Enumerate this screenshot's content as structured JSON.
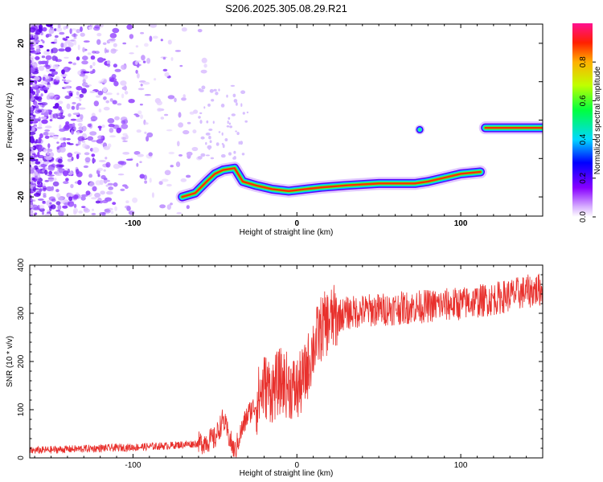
{
  "title": "S206.2025.305.08.29.R21",
  "colors": {
    "trace": "#e8302c",
    "frame": "#000000",
    "background": "#ffffff"
  },
  "chart_data": [
    {
      "type": "heatmap",
      "name": "spectrogram",
      "title": "S206.2025.305.08.29.R21",
      "xlabel": "Height of straight line (km)",
      "ylabel": "Frequency (Hz)",
      "xlim": [
        -163,
        150
      ],
      "ylim": [
        -25,
        25
      ],
      "x_ticks": [
        -100,
        0,
        100
      ],
      "x_tick_labels": [
        "-100",
        "0",
        "100"
      ],
      "y_ticks": [
        -20,
        -10,
        0,
        10,
        20
      ],
      "y_tick_labels": [
        "-20",
        "-10",
        "0",
        "10",
        "20"
      ],
      "colorbar": {
        "label": "Normalized spectral amplitude",
        "range": [
          0,
          1
        ],
        "ticks": [
          0.0,
          0.2,
          0.4,
          0.6,
          0.8
        ],
        "tick_labels": [
          "0.0",
          "0.2",
          "0.4",
          "0.6",
          "0.8"
        ]
      },
      "ridge": [
        {
          "x": -70,
          "f": -20
        },
        {
          "x": -62,
          "f": -19
        },
        {
          "x": -55,
          "f": -16
        },
        {
          "x": -50,
          "f": -14
        },
        {
          "x": -45,
          "f": -13
        },
        {
          "x": -38,
          "f": -12.5
        },
        {
          "x": -33,
          "f": -16
        },
        {
          "x": -25,
          "f": -17
        },
        {
          "x": -15,
          "f": -18
        },
        {
          "x": -5,
          "f": -18.5
        },
        {
          "x": 5,
          "f": -18
        },
        {
          "x": 15,
          "f": -17.5
        },
        {
          "x": 30,
          "f": -17
        },
        {
          "x": 50,
          "f": -16.5
        },
        {
          "x": 72,
          "f": -16.5
        },
        {
          "x": 80,
          "f": -16
        },
        {
          "x": 90,
          "f": -15
        },
        {
          "x": 100,
          "f": -14
        },
        {
          "x": 112,
          "f": -13.5
        },
        {
          "x": 115,
          "f": -2
        },
        {
          "x": 150,
          "f": -2
        }
      ],
      "spot": {
        "x": 75,
        "f": -2.5
      }
    },
    {
      "type": "line",
      "name": "snr",
      "xlabel": "Height of straight line (km)",
      "ylabel": "SNR (10 * v/v)",
      "xlim": [
        -163,
        150
      ],
      "ylim": [
        0,
        400
      ],
      "x_ticks": [
        -100,
        0,
        100
      ],
      "x_tick_labels": [
        "-100",
        "0",
        "100"
      ],
      "y_ticks": [
        0,
        100,
        200,
        300,
        400
      ],
      "y_tick_labels": [
        "0",
        "100",
        "200",
        "300",
        "400"
      ],
      "series": [
        {
          "name": "SNR",
          "x": [
            -163,
            -140,
            -120,
            -100,
            -80,
            -60,
            -50,
            -45,
            -42,
            -38,
            -35,
            -30,
            -25,
            -20,
            -15,
            -10,
            -5,
            0,
            5,
            10,
            15,
            20,
            25,
            30,
            40,
            60,
            80,
            100,
            120,
            140,
            150
          ],
          "y": [
            15,
            18,
            20,
            22,
            25,
            30,
            40,
            80,
            50,
            10,
            45,
            90,
            110,
            150,
            140,
            160,
            150,
            140,
            170,
            230,
            270,
            285,
            295,
            300,
            305,
            310,
            315,
            320,
            330,
            345,
            350
          ]
        }
      ]
    }
  ]
}
